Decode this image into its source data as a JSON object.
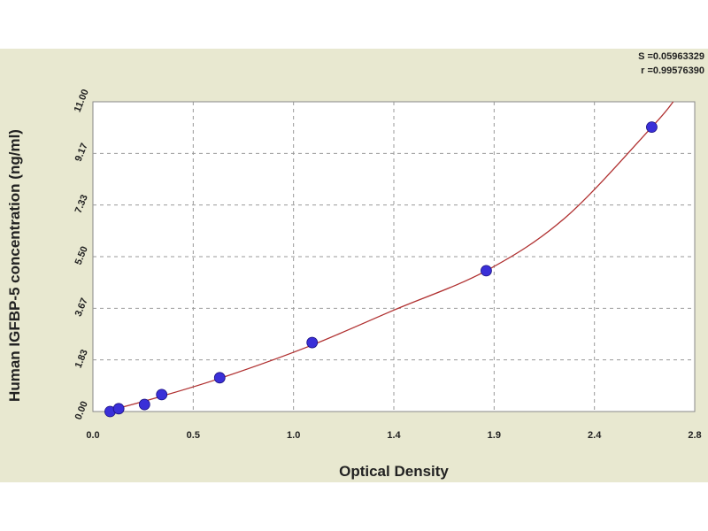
{
  "chart_data": {
    "type": "scatter",
    "title": "",
    "xlabel": "Optical Density",
    "ylabel": "Human IGFBP-5 concentration (ng/ml)",
    "xlim": [
      0.0,
      2.8
    ],
    "ylim": [
      0.0,
      11.0
    ],
    "x_ticks": [
      "0.0",
      "0.5",
      "1.0",
      "1.4",
      "1.9",
      "2.4",
      "2.8"
    ],
    "y_ticks": [
      "0.00",
      "1.83",
      "3.67",
      "5.50",
      "7.33",
      "9.17",
      "11.00"
    ],
    "grid": true,
    "series": [
      {
        "x": [
          0.08,
          0.12,
          0.24,
          0.32,
          0.59,
          1.02,
          1.83,
          2.6
        ],
        "y": [
          0.0,
          0.1,
          0.25,
          0.6,
          1.2,
          2.45,
          5.0,
          10.1
        ]
      }
    ],
    "fit_curve": {
      "x": [
        0.06,
        0.3,
        0.6,
        1.0,
        1.4,
        1.83,
        2.2,
        2.6,
        2.7
      ],
      "y": [
        0.0,
        0.5,
        1.2,
        2.3,
        3.6,
        5.0,
        6.9,
        10.1,
        11.0
      ]
    },
    "stats": {
      "s": "S =0.05963329",
      "r": "r =0.99576390"
    },
    "colors": {
      "background": "#e8e8d0",
      "plot_area": "#ffffff",
      "point_fill": "#3a2fd8",
      "curve": "#b03030",
      "grid": "#999999"
    }
  }
}
